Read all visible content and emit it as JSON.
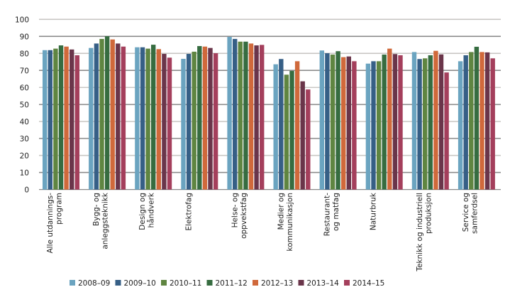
{
  "chart_data": {
    "type": "bar",
    "title": "",
    "xlabel": "",
    "ylabel": "",
    "ylim": [
      0,
      100
    ],
    "yticks": [
      0,
      10,
      20,
      30,
      40,
      50,
      60,
      70,
      80,
      90,
      100
    ],
    "grid": true,
    "legend_position": "bottom",
    "categories": [
      [
        "Alle utdannings-",
        "program"
      ],
      [
        "Bygg- og",
        "anleggsteknikk"
      ],
      [
        "Design og",
        "håndverk"
      ],
      [
        "Elektrofag"
      ],
      [
        "Helse- og",
        "oppvekstfag"
      ],
      [
        "Medier og",
        "kommunikasjon"
      ],
      [
        "Restaurant-",
        "og matfag"
      ],
      [
        "Naturbruk"
      ],
      [
        "Teknikk og industriell",
        "produksjon"
      ],
      [
        "Service og",
        "samferdsel"
      ]
    ],
    "series": [
      {
        "name": "2008–09",
        "color": "#6ba4c0",
        "values": [
          81.9,
          83.2,
          83.6,
          76.8,
          89.7,
          73.6,
          81.7,
          74.0,
          80.8,
          75.4
        ]
      },
      {
        "name": "2009–10",
        "color": "#365f86",
        "values": [
          81.9,
          85.8,
          83.6,
          79.7,
          88.5,
          76.7,
          80.1,
          75.4,
          76.7,
          78.9
        ]
      },
      {
        "name": "2010–11",
        "color": "#5f8541",
        "values": [
          82.8,
          88.5,
          82.8,
          81.0,
          86.9,
          67.5,
          79.3,
          75.4,
          77.1,
          80.8
        ]
      },
      {
        "name": "2011–12",
        "color": "#366c40",
        "values": [
          84.7,
          90.1,
          85.1,
          84.3,
          86.9,
          69.7,
          81.3,
          79.3,
          78.9,
          83.9
        ]
      },
      {
        "name": "2012–13",
        "color": "#d0693b",
        "values": [
          84.0,
          88.2,
          82.5,
          84.0,
          85.8,
          75.4,
          77.8,
          82.8,
          81.5,
          80.8
        ]
      },
      {
        "name": "2013–14",
        "color": "#6a354a",
        "values": [
          82.3,
          85.8,
          79.7,
          83.2,
          84.7,
          63.6,
          78.2,
          79.6,
          79.4,
          80.6
        ]
      },
      {
        "name": "2014–15",
        "color": "#a43f5c",
        "values": [
          78.9,
          84.0,
          77.5,
          80.1,
          85.0,
          58.8,
          75.4,
          78.9,
          68.8,
          77.1
        ]
      }
    ]
  }
}
